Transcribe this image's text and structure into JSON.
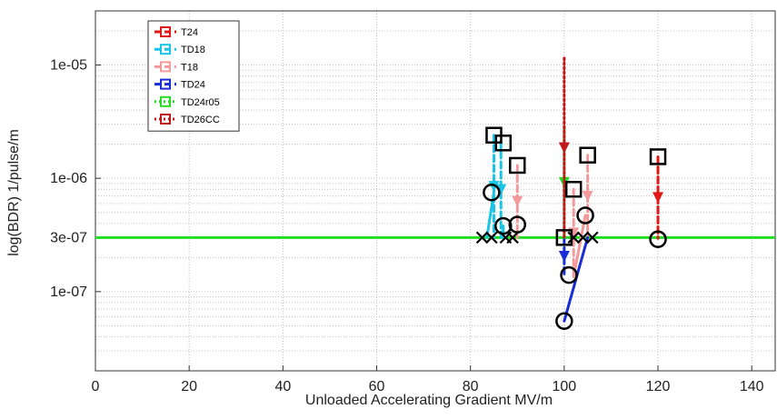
{
  "chart_data": {
    "type": "scatter",
    "title": "",
    "xlabel": "Unloaded Accelerating Gradient MV/m",
    "ylabel": "log(BDR) 1/pulse/m",
    "xlim": [
      0,
      145
    ],
    "ylim": [
      2e-08,
      3e-05
    ],
    "y_scale": "log",
    "grid": true,
    "legend_position": "top-left",
    "x_ticks": [
      0,
      20,
      40,
      60,
      80,
      100,
      120,
      140
    ],
    "x_tick_labels": [
      "0",
      "20",
      "40",
      "60",
      "80",
      "100",
      "120",
      "140"
    ],
    "y_ticks": [
      1e-07,
      3e-07,
      1e-06,
      1e-05
    ],
    "y_tick_labels": [
      "1e-07",
      "3e-07",
      "1e-06",
      "1e-05"
    ],
    "reference_line": {
      "y": 3e-07,
      "color": "#22dd22"
    },
    "series": [
      {
        "name": "T24",
        "color": "#e01818",
        "segments": [
          {
            "x": [
              120,
              120
            ],
            "y": [
              1.55e-06,
              2.95e-07
            ],
            "style": "dashed"
          }
        ]
      },
      {
        "name": "TD18",
        "color": "#19c4e6",
        "segments": [
          {
            "x": [
              85,
              85
            ],
            "y": [
              2.4e-06,
              3e-07
            ],
            "style": "dashed"
          },
          {
            "x": [
              86.5,
              86.5
            ],
            "y": [
              2.1e-06,
              3e-07
            ],
            "style": "dashed"
          },
          {
            "x": [
              83.5,
              85
            ],
            "y": [
              3e-07,
              7.5e-07
            ],
            "style": "solid"
          },
          {
            "x": [
              87,
              87
            ],
            "y": [
              3e-07,
              3.8e-07
            ],
            "style": "solid"
          }
        ]
      },
      {
        "name": "T18",
        "color": "#f29a9a",
        "segments": [
          {
            "x": [
              90,
              90
            ],
            "y": [
              1.3e-06,
              3e-07
            ],
            "style": "dashed"
          },
          {
            "x": [
              105,
              105
            ],
            "y": [
              1.6e-06,
              3e-07
            ],
            "style": "dashed"
          },
          {
            "x": [
              102,
              102
            ],
            "y": [
              8e-07,
              1.35e-07
            ],
            "style": "dashed"
          },
          {
            "x": [
              102,
              104.5
            ],
            "y": [
              1.35e-07,
              4.7e-07
            ],
            "style": "solid"
          }
        ]
      },
      {
        "name": "TD24",
        "color": "#1a2cd6",
        "segments": [
          {
            "x": [
              100,
              100
            ],
            "y": [
              3e-07,
              1.4e-07
            ],
            "style": "dashed"
          },
          {
            "x": [
              100,
              105
            ],
            "y": [
              5.5e-08,
              3e-07
            ],
            "style": "solid"
          }
        ]
      },
      {
        "name": "TD24r05",
        "color": "#22dd22",
        "segments": [
          {
            "x": [
              100,
              100
            ],
            "y": [
              2.8e-06,
              3e-07
            ],
            "style": "dotted"
          }
        ]
      },
      {
        "name": "TD26CC",
        "color": "#c01818",
        "segments": [
          {
            "x": [
              100,
              100
            ],
            "y": [
              1.15e-05,
              3e-07
            ],
            "style": "dotted"
          }
        ]
      }
    ],
    "markers": [
      {
        "shape": "square",
        "x": 85,
        "y": 2.4e-06
      },
      {
        "shape": "square",
        "x": 87,
        "y": 2.05e-06
      },
      {
        "shape": "square",
        "x": 90,
        "y": 1.3e-06
      },
      {
        "shape": "square",
        "x": 102,
        "y": 8e-07
      },
      {
        "shape": "square",
        "x": 105,
        "y": 1.6e-06
      },
      {
        "shape": "square",
        "x": 120,
        "y": 1.55e-06
      },
      {
        "shape": "square",
        "x": 100,
        "y": 3e-07
      },
      {
        "shape": "circle",
        "x": 84.5,
        "y": 7.5e-07
      },
      {
        "shape": "circle",
        "x": 87,
        "y": 3.8e-07
      },
      {
        "shape": "circle",
        "x": 90,
        "y": 3.9e-07
      },
      {
        "shape": "circle",
        "x": 100,
        "y": 5.5e-08
      },
      {
        "shape": "circle",
        "x": 101,
        "y": 1.4e-07
      },
      {
        "shape": "circle",
        "x": 104.5,
        "y": 4.7e-07
      },
      {
        "shape": "circle",
        "x": 120,
        "y": 2.9e-07
      },
      {
        "shape": "x",
        "x": 82.5,
        "y": 3e-07
      },
      {
        "shape": "x",
        "x": 84.5,
        "y": 3e-07
      },
      {
        "shape": "x",
        "x": 87.5,
        "y": 3e-07
      },
      {
        "shape": "x",
        "x": 89,
        "y": 3e-07
      },
      {
        "shape": "x",
        "x": 102,
        "y": 3e-07
      },
      {
        "shape": "x",
        "x": 104,
        "y": 3e-07
      },
      {
        "shape": "x",
        "x": 106,
        "y": 3e-07
      }
    ]
  }
}
